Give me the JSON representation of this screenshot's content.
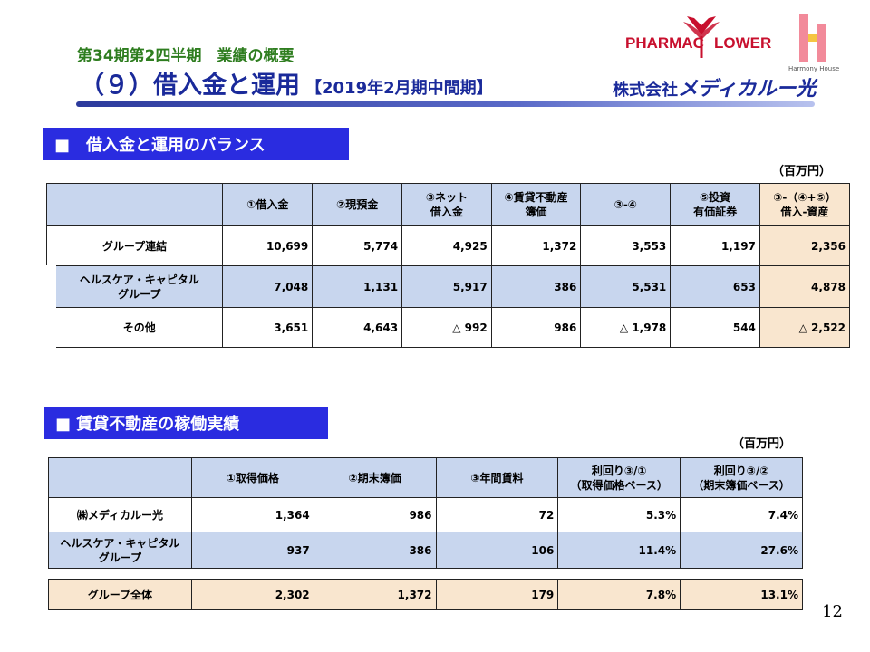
{
  "header": {
    "subtitle": "第34期第2四半期　業績の概要",
    "title": "（９）借入金と運用",
    "period": "【2019年2月期中間期】"
  },
  "logo": {
    "pharmac": "PHARMAC",
    "flower": "LOWER",
    "harmony": "Harmony House",
    "company_prefix": "株式会社",
    "company_name": "メディカルー光"
  },
  "section1": {
    "heading": "■　借入金と運用のバランス",
    "unit": "（百万円）",
    "columns": [
      "①借入金",
      "②現預金",
      "③ネット\n借入金",
      "④賃貸不動産\n簿価",
      "③-④",
      "⑤投資\n有価証券",
      "③-（④+⑤）\n借入-資産"
    ],
    "rows": [
      {
        "label": "グループ連結",
        "values": [
          "10,699",
          "5,774",
          "4,925",
          "1,372",
          "3,553",
          "1,197",
          "2,356"
        ]
      },
      {
        "label": "ヘルスケア・キャピタル\nグループ",
        "values": [
          "7,048",
          "1,131",
          "5,917",
          "386",
          "5,531",
          "653",
          "4,878"
        ]
      },
      {
        "label": "その他",
        "values": [
          "3,651",
          "4,643",
          "△ 992",
          "986",
          "△ 1,978",
          "544",
          "△ 2,522"
        ]
      }
    ]
  },
  "section2": {
    "heading": "■ 賃貸不動産の稼働実績",
    "unit": "（百万円）",
    "columns": [
      "①取得価格",
      "②期末簿価",
      "③年間賃料",
      "利回り③/①\n（取得価格ベース）",
      "利回り③/②\n（期末簿価ベース）"
    ],
    "rows": [
      {
        "label": "㈱メディカルー光",
        "values": [
          "1,364",
          "986",
          "72",
          "5.3%",
          "7.4%"
        ]
      },
      {
        "label": "ヘルスケア・キャピタル\nグループ",
        "values": [
          "937",
          "386",
          "106",
          "11.4%",
          "27.6%"
        ]
      }
    ],
    "total": {
      "label": "グループ全体",
      "values": [
        "2,302",
        "1,372",
        "179",
        "7.8%",
        "13.1%"
      ]
    }
  },
  "page_number": "12",
  "colors": {
    "title_blue": "#1a2a9a",
    "subtitle_green": "#2e7d1f",
    "section_blue": "#2a2ce0",
    "cell_blue": "#c8d6ee",
    "cell_peach": "#f9e6cf",
    "logo_red": "#c8102e"
  }
}
